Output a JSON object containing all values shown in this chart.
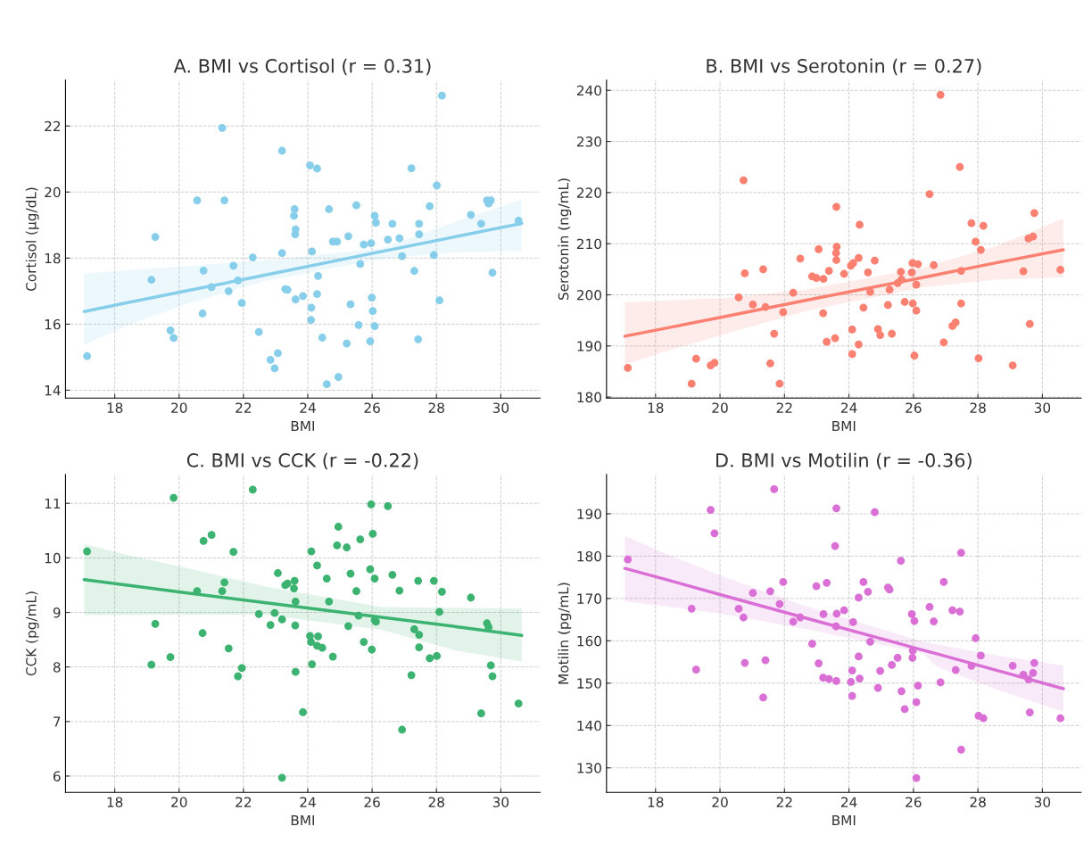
{
  "chart_data": [
    {
      "type": "scatter",
      "title": "A. BMI vs Cortisol (r = 0.31)",
      "xlabel": "BMI",
      "ylabel": "Cortisol (µg/dL)",
      "xlim": [
        16.47,
        31.22
      ],
      "ylim": [
        13.76,
        23.39
      ],
      "xticks": [
        18,
        20,
        22,
        24,
        26,
        28,
        30
      ],
      "yticks": [
        14,
        16,
        18,
        20,
        22
      ],
      "grid": true,
      "series": [
        {
          "marker": "circle",
          "color": "#87ceeb",
          "x": [
            17.14,
            21.34,
            23.2,
            24.07,
            24.29,
            27.22,
            28.17,
            28.01,
            20.56,
            21.41,
            29.57,
            29.69,
            29.62,
            23.59,
            23.57,
            24.66,
            25.51,
            27.79,
            26.08,
            26.12,
            26.63,
            27.46,
            29.07,
            29.39,
            30.55,
            19.26,
            23.62,
            23.61,
            24.78,
            24.91,
            25.26,
            25.74,
            25.97,
            26.49,
            26.85,
            27.46,
            22.29,
            23.2,
            24.13,
            26.93,
            27.92,
            21.69,
            20.76,
            25.63,
            24.32,
            27.31,
            29.74,
            19.14,
            21.83,
            21.01,
            21.54,
            23.3,
            23.37,
            23.85,
            24.29,
            23.62,
            21.95,
            25.33,
            25.99,
            26.02,
            28.09,
            24.11,
            20.73,
            24.1,
            19.73,
            19.83,
            22.48,
            25.58,
            26.08,
            24.45,
            25.21,
            25.94,
            27.43,
            23.07,
            22.84,
            22.97,
            24.95,
            24.59
          ],
          "values": [
            15.03,
            21.94,
            21.25,
            20.81,
            20.71,
            20.72,
            22.92,
            20.2,
            19.75,
            19.75,
            19.75,
            19.75,
            19.65,
            19.48,
            19.28,
            19.48,
            19.6,
            19.57,
            19.28,
            19.07,
            19.04,
            19.04,
            19.31,
            19.04,
            19.13,
            18.64,
            18.87,
            18.72,
            18.5,
            18.5,
            18.66,
            18.41,
            18.45,
            18.56,
            18.6,
            18.72,
            18.02,
            18.15,
            18.2,
            18.06,
            18.09,
            17.77,
            17.62,
            17.82,
            17.46,
            17.61,
            17.56,
            17.34,
            17.32,
            17.12,
            17.0,
            17.06,
            17.04,
            16.85,
            16.91,
            16.75,
            16.64,
            16.6,
            16.8,
            16.4,
            16.72,
            16.5,
            16.32,
            16.13,
            15.81,
            15.58,
            15.76,
            15.97,
            15.94,
            15.59,
            15.41,
            15.48,
            15.54,
            15.12,
            14.92,
            14.66,
            14.4,
            14.18
          ]
        },
        {
          "type": "line",
          "marker": "none",
          "color": "#87ceeb",
          "x": [
            17.05,
            18.5,
            20.2,
            22.65,
            26.3,
            28.6,
            30.65
          ],
          "values": [
            16.38,
            16.67,
            17.0,
            17.48,
            18.2,
            18.65,
            19.05
          ],
          "lower": [
            15.38,
            16.0,
            16.6,
            17.3,
            17.98,
            18.17,
            18.22
          ],
          "upper": [
            17.53,
            17.64,
            17.76,
            17.93,
            18.3,
            19.1,
            19.77
          ]
        }
      ]
    },
    {
      "type": "scatter",
      "title": "B. BMI vs Serotonin (r = 0.27)",
      "xlabel": "BMI",
      "ylabel": "Serotonin (ng/mL)",
      "xlim": [
        16.48,
        31.2
      ],
      "ylim": [
        179.8,
        242
      ],
      "xticks": [
        18,
        20,
        22,
        24,
        26,
        28,
        30
      ],
      "yticks": [
        180,
        190,
        200,
        210,
        220,
        230,
        240
      ],
      "grid": true,
      "series": [
        {
          "marker": "circle",
          "color": "#fa8072",
          "x": [
            17.14,
            19.12,
            19.26,
            19.71,
            19.83,
            20.73,
            20.58,
            20.77,
            21.02,
            21.34,
            21.41,
            21.56,
            21.68,
            21.85,
            21.96,
            22.27,
            22.49,
            22.86,
            22.99,
            23.06,
            23.2,
            23.21,
            23.31,
            23.38,
            23.57,
            23.6,
            23.61,
            23.62,
            23.61,
            23.85,
            24.06,
            24.13,
            24.1,
            24.1,
            24.3,
            24.33,
            24.3,
            24.45,
            24.59,
            24.66,
            24.8,
            24.9,
            24.97,
            25.21,
            25.26,
            25.33,
            25.51,
            25.61,
            25.63,
            25.73,
            25.95,
            25.97,
            25.98,
            26.03,
            26.09,
            26.09,
            26.14,
            26.5,
            26.63,
            26.84,
            26.94,
            27.21,
            27.31,
            27.44,
            27.48,
            27.48,
            27.8,
            27.93,
            28.02,
            28.09,
            28.17,
            29.08,
            29.41,
            29.57,
            29.61,
            29.71,
            29.75,
            30.56
          ],
          "values": [
            185.7,
            182.6,
            187.5,
            186.2,
            186.7,
            222.4,
            199.5,
            204.2,
            198.1,
            205.0,
            197.6,
            186.6,
            192.4,
            182.6,
            196.6,
            200.4,
            207.1,
            203.6,
            203.3,
            208.9,
            196.4,
            203.1,
            190.8,
            204.7,
            191.5,
            208.2,
            217.2,
            209.4,
            206.8,
            204.1,
            205.7,
            206.2,
            193.2,
            188.4,
            207.2,
            213.7,
            190.3,
            197.5,
            204.4,
            200.6,
            206.7,
            193.3,
            192.1,
            198.0,
            201.0,
            192.4,
            202.3,
            204.5,
            203.0,
            198.6,
            204.4,
            206.2,
            198.3,
            188.1,
            202.0,
            196.9,
            206.0,
            219.7,
            205.8,
            239.1,
            190.7,
            193.9,
            194.6,
            225.0,
            204.7,
            198.3,
            214.0,
            210.4,
            187.6,
            208.8,
            213.5,
            186.2,
            204.6,
            211.0,
            194.3,
            211.4,
            216.0,
            204.9
          ]
        },
        {
          "type": "line",
          "marker": "none",
          "color": "#fa8072",
          "x": [
            17.05,
            18.5,
            20.2,
            22.65,
            26.3,
            28.6,
            30.65
          ],
          "values": [
            191.9,
            193.7,
            195.8,
            198.9,
            203.4,
            206.3,
            208.8
          ],
          "lower": [
            186.4,
            189.3,
            192.4,
            196.8,
            201.5,
            203.0,
            203.4
          ],
          "upper": [
            198.5,
            198.9,
            199.4,
            201.0,
            205.3,
            209.6,
            214.9
          ]
        }
      ]
    },
    {
      "type": "scatter",
      "title": "C. BMI vs CCK (r = -0.22)",
      "xlabel": "BMI",
      "ylabel": "CCK (pg/mL)",
      "xlim": [
        16.47,
        31.22
      ],
      "ylim": [
        5.7,
        11.53
      ],
      "xticks": [
        18,
        20,
        22,
        24,
        26,
        28,
        30
      ],
      "yticks": [
        6,
        7,
        8,
        9,
        10,
        11
      ],
      "grid": true,
      "series": [
        {
          "marker": "circle",
          "color": "#3cb371",
          "x": [
            17.14,
            19.14,
            19.26,
            19.73,
            19.83,
            20.56,
            20.73,
            20.76,
            21.01,
            21.34,
            21.41,
            21.54,
            21.69,
            21.83,
            21.95,
            22.29,
            22.48,
            22.84,
            22.97,
            23.07,
            23.2,
            23.2,
            23.3,
            23.37,
            23.57,
            23.59,
            23.61,
            23.62,
            23.62,
            23.85,
            24.07,
            24.1,
            24.11,
            24.13,
            24.29,
            24.29,
            24.32,
            24.45,
            24.59,
            24.66,
            24.78,
            24.91,
            24.95,
            25.21,
            25.26,
            25.33,
            25.51,
            25.58,
            25.63,
            25.74,
            25.94,
            25.97,
            25.99,
            26.02,
            26.08,
            26.08,
            26.12,
            26.49,
            26.63,
            26.85,
            26.93,
            27.22,
            27.31,
            27.43,
            27.46,
            27.46,
            27.79,
            27.92,
            28.01,
            28.09,
            28.17,
            29.07,
            29.39,
            29.57,
            29.62,
            29.69,
            29.74,
            30.55
          ],
          "values": [
            10.12,
            8.04,
            8.79,
            8.18,
            11.1,
            9.39,
            8.62,
            10.31,
            10.42,
            9.39,
            9.55,
            8.34,
            10.11,
            7.83,
            7.98,
            11.25,
            8.97,
            8.77,
            8.99,
            9.72,
            8.87,
            5.97,
            9.5,
            9.53,
            9.44,
            9.58,
            8.76,
            9.2,
            7.91,
            7.17,
            8.57,
            8.46,
            10.12,
            8.05,
            9.86,
            8.39,
            8.56,
            8.35,
            9.62,
            9.2,
            8.19,
            10.23,
            10.57,
            10.19,
            8.75,
            9.71,
            9.39,
            8.94,
            10.34,
            8.46,
            9.79,
            10.98,
            8.32,
            10.44,
            9.62,
            8.86,
            8.83,
            10.95,
            9.69,
            9.4,
            6.85,
            7.85,
            8.69,
            9.58,
            8.59,
            8.36,
            8.16,
            9.58,
            8.2,
            9.01,
            9.38,
            9.27,
            7.15,
            8.8,
            8.73,
            8.03,
            7.83,
            7.33
          ]
        },
        {
          "type": "line",
          "marker": "none",
          "color": "#3cb371",
          "x": [
            17.05,
            18.5,
            20.2,
            22.65,
            26.3,
            28.6,
            30.65
          ],
          "values": [
            9.6,
            9.49,
            9.36,
            9.18,
            8.91,
            8.74,
            8.58
          ],
          "lower": [
            8.95,
            8.95,
            8.96,
            8.96,
            8.68,
            8.3,
            8.1
          ],
          "upper": [
            10.25,
            10.04,
            9.82,
            9.48,
            9.1,
            9.08,
            9.07
          ]
        }
      ]
    },
    {
      "type": "scatter",
      "title": "D. BMI vs Motilin (r = -0.36)",
      "xlabel": "BMI",
      "ylabel": "Motilin (pg/mL)",
      "xlim": [
        16.48,
        31.2
      ],
      "ylim": [
        124.2,
        199.3
      ],
      "xticks": [
        18,
        20,
        22,
        24,
        26,
        28,
        30
      ],
      "yticks": [
        130,
        140,
        150,
        160,
        170,
        180,
        190
      ],
      "grid": true,
      "series": [
        {
          "marker": "circle",
          "color": "#da70d6",
          "x": [
            17.14,
            19.12,
            19.26,
            19.71,
            19.83,
            20.58,
            20.73,
            20.77,
            21.02,
            21.34,
            21.41,
            21.56,
            21.68,
            21.85,
            21.96,
            22.27,
            22.49,
            22.86,
            22.99,
            23.06,
            23.2,
            23.21,
            23.31,
            23.38,
            23.57,
            23.6,
            23.61,
            23.61,
            23.62,
            23.85,
            24.06,
            24.1,
            24.1,
            24.13,
            24.3,
            24.3,
            24.33,
            24.45,
            24.59,
            24.66,
            24.8,
            24.9,
            24.97,
            25.21,
            25.26,
            25.33,
            25.51,
            25.61,
            25.63,
            25.73,
            25.95,
            25.97,
            25.98,
            26.03,
            26.09,
            26.09,
            26.14,
            26.5,
            26.63,
            26.84,
            26.94,
            27.21,
            27.31,
            27.44,
            27.48,
            27.48,
            27.8,
            27.93,
            28.02,
            28.09,
            28.17,
            29.08,
            29.41,
            29.57,
            29.61,
            29.71,
            29.75,
            30.56
          ],
          "values": [
            179.2,
            167.6,
            153.2,
            190.9,
            185.4,
            167.6,
            165.5,
            154.8,
            171.3,
            146.6,
            155.4,
            171.7,
            195.8,
            168.7,
            173.9,
            164.5,
            165.5,
            159.3,
            172.9,
            154.7,
            151.3,
            166.3,
            173.7,
            151.0,
            182.4,
            163.4,
            191.3,
            150.5,
            166.4,
            167.2,
            150.3,
            153.0,
            147.0,
            164.4,
            170.2,
            156.3,
            151.1,
            173.9,
            171.6,
            159.8,
            190.4,
            148.9,
            152.9,
            172.6,
            172.1,
            154.3,
            156.0,
            178.9,
            148.1,
            143.9,
            166.3,
            156.0,
            157.7,
            164.7,
            145.5,
            127.6,
            149.4,
            168.0,
            164.6,
            150.2,
            173.9,
            167.2,
            153.1,
            166.9,
            180.8,
            134.3,
            154.1,
            160.6,
            142.3,
            156.5,
            141.7,
            154.1,
            152.0,
            150.9,
            143.1,
            152.4,
            154.8,
            141.7
          ]
        },
        {
          "type": "line",
          "marker": "none",
          "color": "#da70d6",
          "x": [
            17.05,
            18.5,
            20.2,
            22.65,
            26.3,
            26.75,
            28.6,
            30.65
          ],
          "values": [
            177.1,
            174.1,
            170.5,
            165.4,
            157.8,
            156.9,
            153.0,
            148.7
          ],
          "lower": [
            169.3,
            168.0,
            166.2,
            162.8,
            157.0,
            153.8,
            148.5,
            143.3
          ],
          "upper": [
            184.7,
            180.0,
            174.9,
            168.2,
            159.8,
            159.15,
            156.5,
            154.2
          ]
        }
      ]
    }
  ]
}
